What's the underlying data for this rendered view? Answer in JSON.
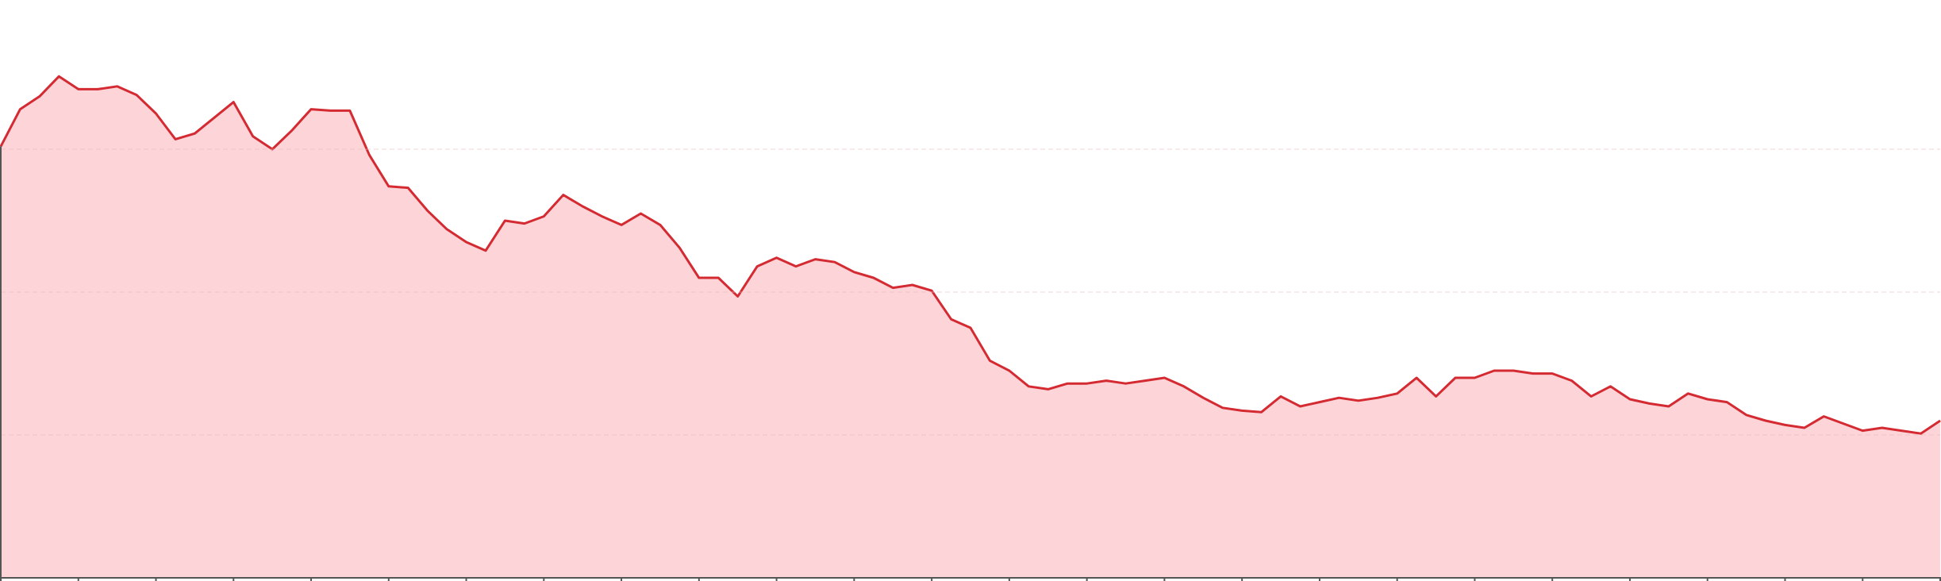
{
  "chart_data": {
    "type": "area",
    "x": [
      0,
      0.25,
      0.5,
      0.75,
      1,
      1.25,
      1.5,
      1.75,
      2,
      2.25,
      2.5,
      2.75,
      3,
      3.25,
      3.5,
      3.75,
      4,
      4.25,
      4.5,
      4.75,
      5,
      5.25,
      5.5,
      5.75,
      6,
      6.25,
      6.5,
      6.75,
      7,
      7.25,
      7.5,
      7.75,
      8,
      8.25,
      8.5,
      8.75,
      9,
      9.25,
      9.5,
      9.75,
      10,
      10.25,
      10.5,
      10.75,
      11,
      11.25,
      11.5,
      11.75,
      12,
      12.25,
      12.5,
      12.75,
      13,
      13.25,
      13.5,
      13.75,
      14,
      14.25,
      14.5,
      14.75,
      15,
      15.25,
      15.5,
      15.75,
      16,
      16.25,
      16.5,
      16.75,
      17,
      17.25,
      17.5,
      17.75,
      18,
      18.25,
      18.5,
      18.75,
      19,
      19.25,
      19.5,
      19.75,
      20,
      20.25,
      20.5,
      20.75,
      21,
      21.25,
      21.5,
      21.75,
      22,
      22.25,
      22.5,
      22.75,
      23,
      23.25,
      23.5,
      23.75,
      24,
      24.25,
      24.5,
      24.75,
      25
    ],
    "values": [
      3.02,
      3.28,
      3.37,
      3.51,
      3.42,
      3.42,
      3.44,
      3.38,
      3.25,
      3.07,
      3.11,
      3.22,
      3.33,
      3.09,
      3.0,
      3.13,
      3.28,
      3.27,
      3.27,
      2.96,
      2.74,
      2.73,
      2.57,
      2.44,
      2.35,
      2.29,
      2.5,
      2.48,
      2.53,
      2.68,
      2.6,
      2.53,
      2.47,
      2.55,
      2.47,
      2.31,
      2.1,
      2.1,
      1.97,
      2.18,
      2.24,
      2.18,
      2.23,
      2.21,
      2.14,
      2.1,
      2.03,
      2.05,
      2.01,
      1.81,
      1.75,
      1.52,
      1.45,
      1.34,
      1.32,
      1.36,
      1.36,
      1.38,
      1.36,
      1.38,
      1.4,
      1.34,
      1.26,
      1.19,
      1.17,
      1.16,
      1.27,
      1.2,
      1.23,
      1.26,
      1.24,
      1.26,
      1.29,
      1.4,
      1.27,
      1.4,
      1.4,
      1.45,
      1.45,
      1.43,
      1.43,
      1.38,
      1.27,
      1.34,
      1.25,
      1.22,
      1.2,
      1.29,
      1.25,
      1.23,
      1.14,
      1.1,
      1.07,
      1.05,
      1.13,
      1.08,
      1.03,
      1.05,
      1.03,
      1.01,
      1.1
    ],
    "color": "#d42a32",
    "fill": "#fdd4d7",
    "xlim": [
      0,
      25
    ],
    "xticks": [
      0,
      1,
      2,
      3,
      4,
      5,
      6,
      7,
      8,
      9,
      10,
      11,
      12,
      13,
      14,
      15,
      16,
      17,
      18,
      19,
      20,
      21,
      22,
      23,
      24,
      25
    ],
    "ylim": [
      0,
      4
    ],
    "yticks": [
      1,
      2,
      3
    ],
    "grid": true
  }
}
